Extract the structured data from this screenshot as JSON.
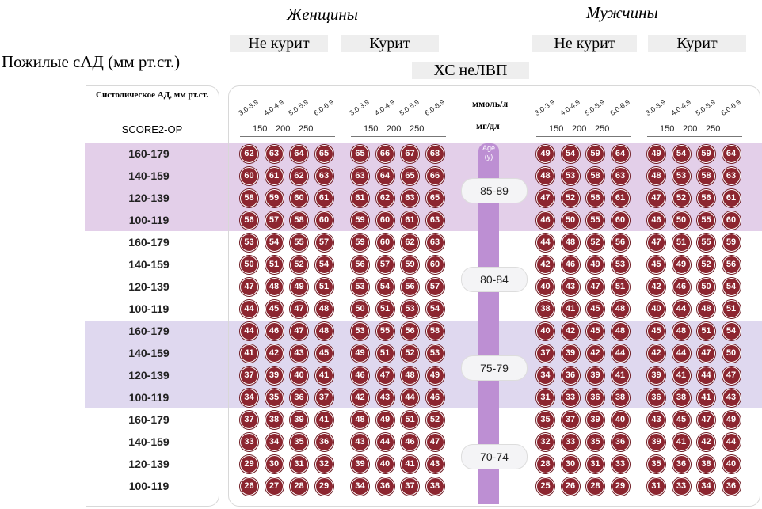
{
  "header": {
    "women": "Женщины",
    "men": "Мужчины",
    "nonsmoker": "Не курит",
    "smoker": "Курит",
    "row_title": "Пожилые сАД (мм рт.ст.)",
    "chol_title": "ХС неЛВП",
    "left_col_title": "Систолическое АД, мм рт.ст.",
    "score_label": "SCORE2-OP",
    "unit_mmol": "ммоль/л",
    "unit_mgdl": "мг/дл",
    "age_axis": "Age (y)"
  },
  "chart_data": {
    "type": "table",
    "cholesterol_mmol": [
      "3.0-3.9",
      "4.0-4.9",
      "5.0-5.9",
      "6.0-6.9"
    ],
    "cholesterol_mgdl": [
      "150",
      "200",
      "250"
    ],
    "sbp_rows": [
      "160-179",
      "140-159",
      "120-139",
      "100-119"
    ],
    "panel_titles": [
      "Не курит",
      "Курит",
      "Не курит",
      "Курит"
    ],
    "age_groups": [
      {
        "age": "85-89",
        "women_nonsmoker": [
          [
            62,
            63,
            64,
            65
          ],
          [
            60,
            61,
            62,
            63
          ],
          [
            58,
            59,
            60,
            61
          ],
          [
            56,
            57,
            58,
            60
          ]
        ],
        "women_smoker": [
          [
            65,
            66,
            67,
            68
          ],
          [
            63,
            64,
            65,
            66
          ],
          [
            61,
            62,
            63,
            65
          ],
          [
            59,
            60,
            61,
            63
          ]
        ],
        "men_nonsmoker": [
          [
            49,
            54,
            59,
            64
          ],
          [
            48,
            53,
            58,
            63
          ],
          [
            47,
            52,
            56,
            61
          ],
          [
            46,
            50,
            55,
            60
          ]
        ],
        "men_smoker": [
          [
            49,
            54,
            59,
            64
          ],
          [
            48,
            53,
            58,
            63
          ],
          [
            47,
            52,
            56,
            61
          ],
          [
            46,
            50,
            55,
            60
          ]
        ]
      },
      {
        "age": "80-84",
        "women_nonsmoker": [
          [
            53,
            54,
            55,
            57
          ],
          [
            50,
            51,
            52,
            54
          ],
          [
            47,
            48,
            49,
            51
          ],
          [
            44,
            45,
            47,
            48
          ]
        ],
        "women_smoker": [
          [
            59,
            60,
            62,
            63
          ],
          [
            56,
            57,
            59,
            60
          ],
          [
            53,
            54,
            56,
            57
          ],
          [
            50,
            51,
            53,
            54
          ]
        ],
        "men_nonsmoker": [
          [
            44,
            48,
            52,
            56
          ],
          [
            42,
            46,
            49,
            53
          ],
          [
            40,
            43,
            47,
            51
          ],
          [
            38,
            41,
            45,
            48
          ]
        ],
        "men_smoker": [
          [
            47,
            51,
            55,
            59
          ],
          [
            45,
            49,
            52,
            56
          ],
          [
            42,
            46,
            50,
            54
          ],
          [
            40,
            44,
            48,
            51
          ]
        ]
      },
      {
        "age": "75-79",
        "women_nonsmoker": [
          [
            44,
            46,
            47,
            48
          ],
          [
            41,
            42,
            43,
            45
          ],
          [
            37,
            39,
            40,
            41
          ],
          [
            34,
            35,
            36,
            37
          ]
        ],
        "women_smoker": [
          [
            53,
            55,
            56,
            58
          ],
          [
            49,
            51,
            52,
            53
          ],
          [
            46,
            47,
            48,
            49
          ],
          [
            42,
            43,
            44,
            46
          ]
        ],
        "men_nonsmoker": [
          [
            40,
            42,
            45,
            48
          ],
          [
            37,
            39,
            42,
            44
          ],
          [
            34,
            36,
            39,
            41
          ],
          [
            31,
            33,
            36,
            38
          ]
        ],
        "men_smoker": [
          [
            45,
            48,
            51,
            54
          ],
          [
            42,
            44,
            47,
            50
          ],
          [
            39,
            41,
            44,
            47
          ],
          [
            36,
            38,
            41,
            43
          ]
        ]
      },
      {
        "age": "70-74",
        "women_nonsmoker": [
          [
            37,
            38,
            39,
            41
          ],
          [
            33,
            34,
            35,
            36
          ],
          [
            29,
            30,
            31,
            32
          ],
          [
            26,
            27,
            28,
            29
          ]
        ],
        "women_smoker": [
          [
            48,
            49,
            51,
            52
          ],
          [
            43,
            44,
            46,
            47
          ],
          [
            39,
            40,
            41,
            43
          ],
          [
            34,
            36,
            37,
            38
          ]
        ],
        "men_nonsmoker": [
          [
            35,
            37,
            39,
            40
          ],
          [
            32,
            33,
            35,
            36
          ],
          [
            28,
            30,
            31,
            33
          ],
          [
            25,
            26,
            28,
            29
          ]
        ],
        "men_smoker": [
          [
            43,
            45,
            47,
            49
          ],
          [
            39,
            41,
            42,
            44
          ],
          [
            35,
            36,
            38,
            40
          ],
          [
            31,
            33,
            34,
            36
          ]
        ]
      }
    ],
    "band_colors": [
      "#e3cfe9",
      "#ffffff",
      "#dfd8ef",
      "#ffffff"
    ],
    "circle_color": "#8c2630"
  }
}
